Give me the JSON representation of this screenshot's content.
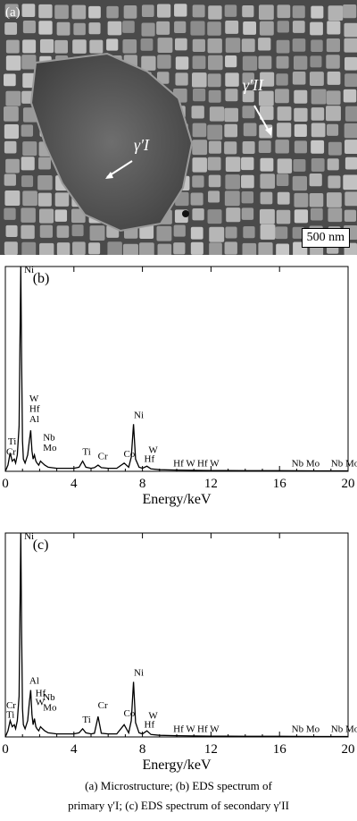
{
  "figure": {
    "panel_a": {
      "label": "(a)",
      "phase_primary": "γ′I",
      "phase_secondary": "γ′II",
      "scale_bar": "500 nm"
    },
    "caption": {
      "line1": "(a)  Microstructure;  (b)  EDS  spectrum  of",
      "line2": "primary γ′I; (c) EDS spectrum of secondary γ′II"
    }
  },
  "chart_data": [
    {
      "type": "line",
      "panel_label": "(b)",
      "xlabel": "Energy/keV",
      "ylabel": "",
      "xlim": [
        0,
        20
      ],
      "ylim": [
        0,
        100
      ],
      "xticks": [
        0,
        4,
        8,
        12,
        16,
        20
      ],
      "line_color": "#000000",
      "series": [
        {
          "x": [
            0.0,
            0.15,
            0.28,
            0.4,
            0.52,
            0.6,
            0.7,
            0.8,
            0.85,
            0.9,
            0.95,
            1.0,
            1.05,
            1.15,
            1.3,
            1.4,
            1.48,
            1.55,
            1.62,
            1.7,
            1.78,
            1.85,
            1.95,
            2.05,
            2.17,
            2.3,
            2.5,
            3.0,
            3.5,
            4.0,
            4.3,
            4.51,
            4.7,
            5.0,
            5.2,
            5.41,
            5.6,
            6.0,
            6.5,
            6.93,
            7.2,
            7.35,
            7.48,
            7.6,
            7.8,
            8.0,
            8.26,
            8.5,
            9.0,
            10.0,
            12.0,
            14.0,
            16.0,
            18.0,
            20.0
          ],
          "y": [
            0,
            3,
            9,
            5,
            6,
            4,
            8,
            22,
            60,
            100,
            55,
            15,
            6,
            4,
            8,
            15,
            20,
            10,
            6,
            8,
            5,
            4,
            3,
            5,
            4,
            3,
            2,
            1.5,
            1.5,
            1.5,
            2,
            5,
            2,
            1.5,
            1.8,
            3,
            1.8,
            1.5,
            1.5,
            4,
            2,
            7,
            23,
            6,
            2,
            1.5,
            2.5,
            1.2,
            0.8,
            0.6,
            0.4,
            0.3,
            0.3,
            0.2,
            0.2
          ]
        }
      ],
      "annotations": [
        {
          "text": "Ni",
          "x": 1.1,
          "y": 97
        },
        {
          "text": "W",
          "x": 1.4,
          "y": 34
        },
        {
          "text": "Hf",
          "x": 1.4,
          "y": 29
        },
        {
          "text": "Al",
          "x": 1.4,
          "y": 24
        },
        {
          "text": "Nb",
          "x": 2.2,
          "y": 15
        },
        {
          "text": "Mo",
          "x": 2.2,
          "y": 10
        },
        {
          "text": "Ti",
          "x": 0.15,
          "y": 13
        },
        {
          "text": "Cr",
          "x": 0.05,
          "y": 8
        },
        {
          "text": "Ti",
          "x": 4.5,
          "y": 8
        },
        {
          "text": "Cr",
          "x": 5.4,
          "y": 6
        },
        {
          "text": "Co",
          "x": 6.9,
          "y": 7
        },
        {
          "text": "Ni",
          "x": 7.5,
          "y": 26
        },
        {
          "text": "W",
          "x": 8.35,
          "y": 9
        },
        {
          "text": "Hf",
          "x": 8.1,
          "y": 4.5
        },
        {
          "text": "Hf W",
          "x": 9.8,
          "y": 2.5
        },
        {
          "text": "Hf W",
          "x": 11.2,
          "y": 2.5
        },
        {
          "text": "Nb Mo",
          "x": 16.7,
          "y": 2.5
        },
        {
          "text": "Nb Mo",
          "x": 19.0,
          "y": 2.5
        }
      ]
    },
    {
      "type": "line",
      "panel_label": "(c)",
      "xlabel": "Energy/keV",
      "ylabel": "",
      "xlim": [
        0,
        20
      ],
      "ylim": [
        0,
        100
      ],
      "xticks": [
        0,
        4,
        8,
        12,
        16,
        20
      ],
      "line_color": "#000000",
      "series": [
        {
          "x": [
            0.0,
            0.15,
            0.28,
            0.4,
            0.52,
            0.6,
            0.7,
            0.8,
            0.85,
            0.9,
            0.95,
            1.0,
            1.05,
            1.15,
            1.3,
            1.4,
            1.48,
            1.55,
            1.62,
            1.7,
            1.78,
            1.85,
            1.95,
            2.05,
            2.17,
            2.3,
            2.5,
            3.0,
            3.5,
            4.0,
            4.3,
            4.51,
            4.7,
            5.0,
            5.2,
            5.41,
            5.6,
            6.0,
            6.5,
            6.93,
            7.2,
            7.35,
            7.48,
            7.6,
            7.8,
            8.0,
            8.26,
            8.5,
            9.0,
            10.0,
            12.0,
            14.0,
            16.0,
            18.0,
            20.0
          ],
          "y": [
            0,
            3,
            8,
            5,
            6,
            4,
            8,
            20,
            58,
            100,
            52,
            14,
            6,
            4,
            8,
            17,
            23,
            11,
            6,
            9,
            5,
            4,
            3,
            5,
            4,
            3,
            2,
            1.5,
            1.5,
            1.5,
            2,
            4,
            2,
            1.5,
            1.8,
            10,
            1.8,
            1.5,
            1.5,
            6,
            2,
            8,
            27,
            7,
            2,
            1.5,
            3,
            1.2,
            0.8,
            0.6,
            0.4,
            0.3,
            0.3,
            0.2,
            0.2
          ]
        }
      ],
      "annotations": [
        {
          "text": "Ni",
          "x": 1.1,
          "y": 97
        },
        {
          "text": "Al",
          "x": 1.4,
          "y": 26
        },
        {
          "text": "Hf",
          "x": 1.75,
          "y": 20
        },
        {
          "text": "W",
          "x": 1.75,
          "y": 15.5
        },
        {
          "text": "Nb",
          "x": 2.2,
          "y": 18
        },
        {
          "text": "Mo",
          "x": 2.2,
          "y": 13
        },
        {
          "text": "Cr",
          "x": 0.05,
          "y": 14
        },
        {
          "text": "Ti",
          "x": 0.05,
          "y": 9.5
        },
        {
          "text": "Ti",
          "x": 4.5,
          "y": 7
        },
        {
          "text": "Cr",
          "x": 5.4,
          "y": 14
        },
        {
          "text": "Co",
          "x": 6.9,
          "y": 10
        },
        {
          "text": "Ni",
          "x": 7.5,
          "y": 30
        },
        {
          "text": "W",
          "x": 8.35,
          "y": 9
        },
        {
          "text": "Hf",
          "x": 8.1,
          "y": 4.5
        },
        {
          "text": "Hf W",
          "x": 9.8,
          "y": 2.5
        },
        {
          "text": "Hf W",
          "x": 11.2,
          "y": 2.5
        },
        {
          "text": "Nb Mo",
          "x": 16.7,
          "y": 2.5
        },
        {
          "text": "Nb Mo",
          "x": 19.0,
          "y": 2.5
        }
      ]
    }
  ]
}
